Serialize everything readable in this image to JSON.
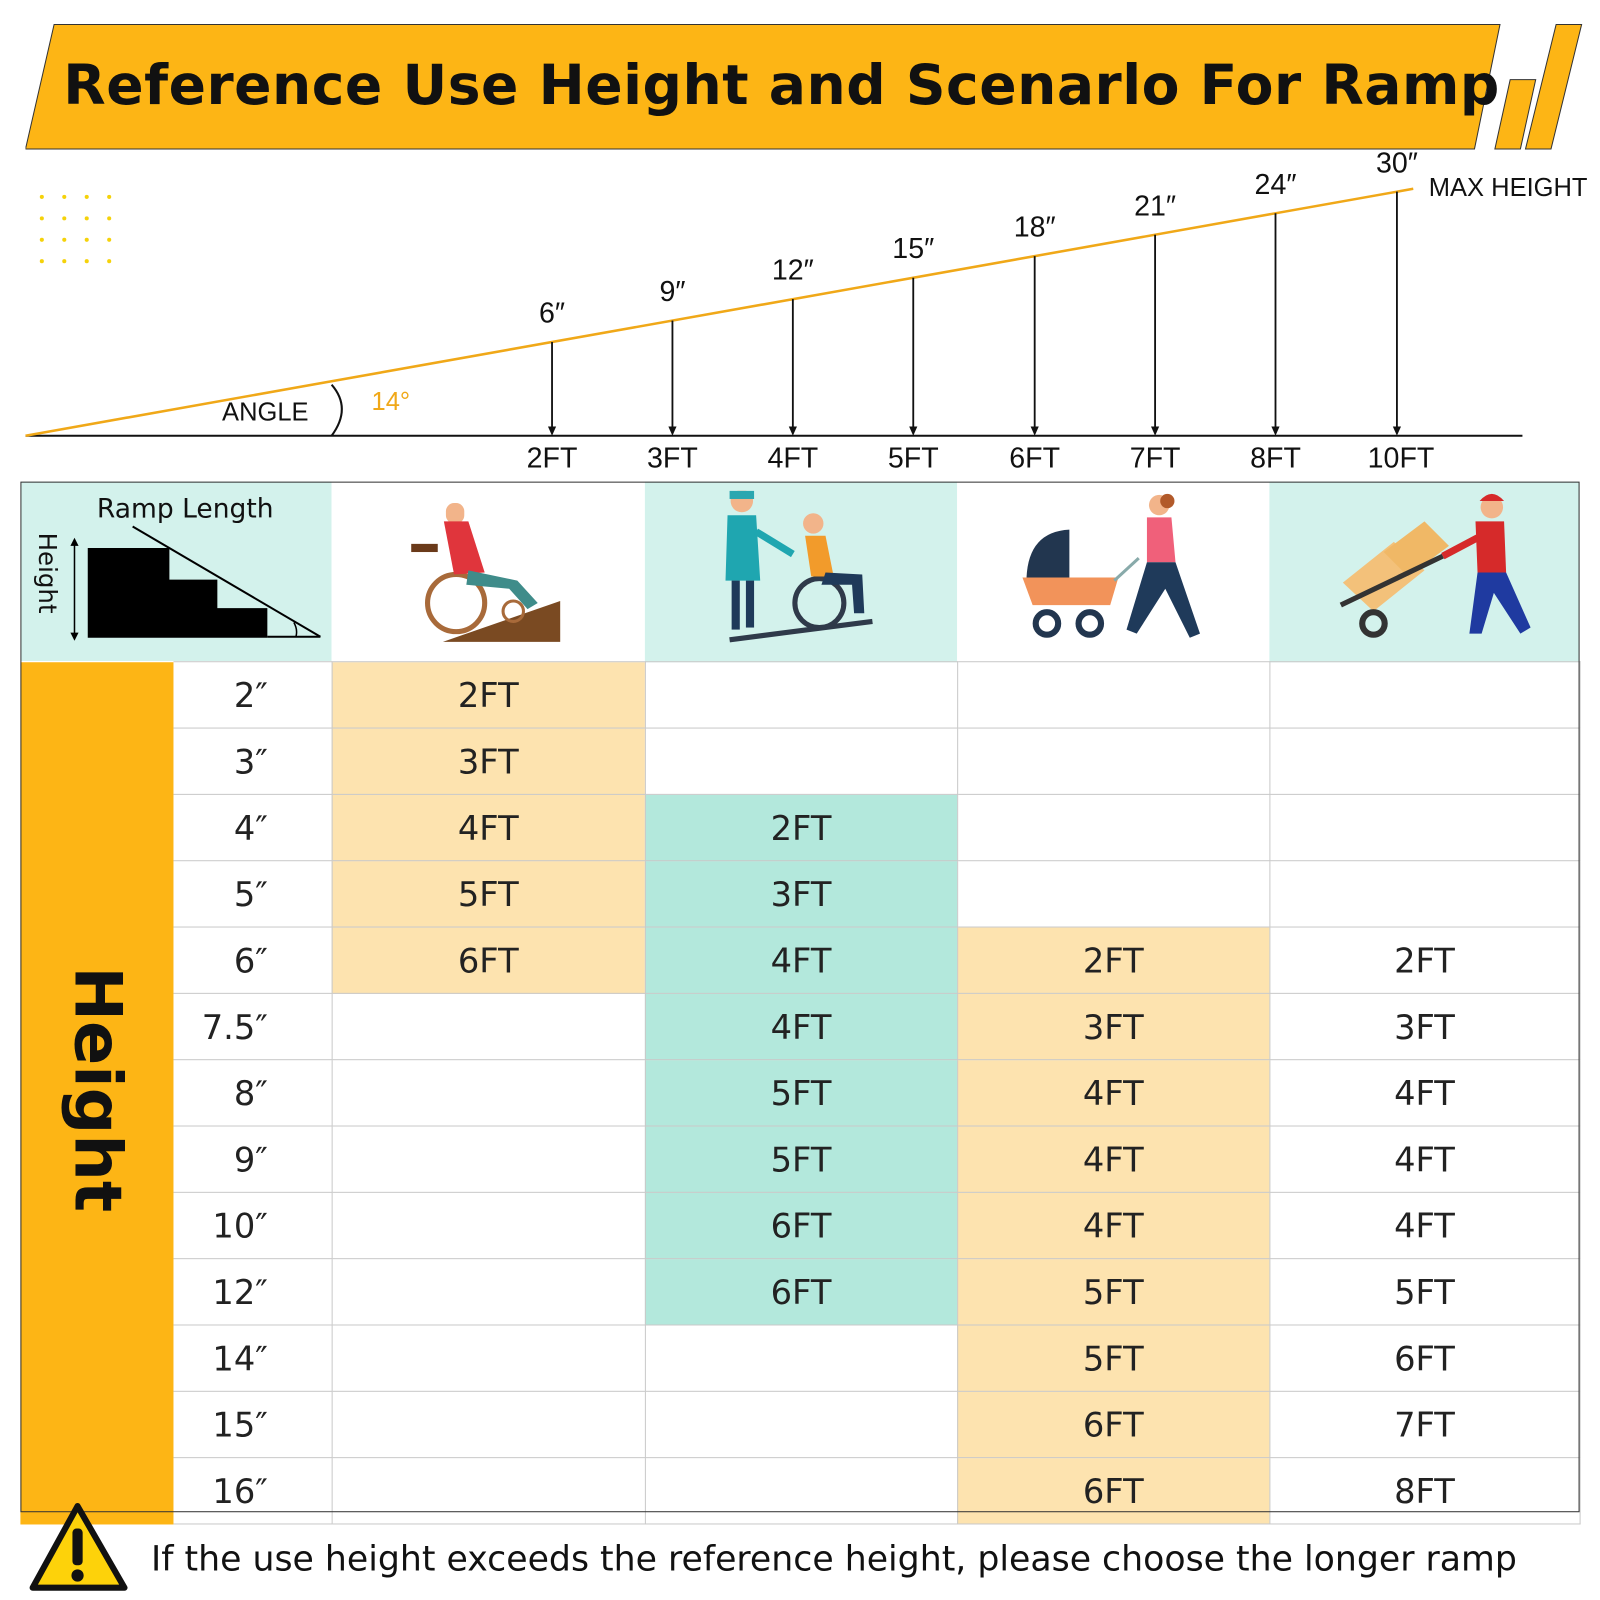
{
  "title": "Reference Use Height and Scenarlo For Ramp",
  "colors": {
    "accent": "#fdb515",
    "peach": "#fde3af",
    "mint": "#b3e8dc",
    "header_mint": "#d3f2ec",
    "slope_line": "#f0a818"
  },
  "diagram": {
    "angle_label": "ANGLE",
    "angle_value": "14°",
    "max_label": "MAX HEIGHT",
    "points": [
      {
        "length": "2FT",
        "height": "6″"
      },
      {
        "length": "3FT",
        "height": "9″"
      },
      {
        "length": "4FT",
        "height": "12″"
      },
      {
        "length": "5FT",
        "height": "15″"
      },
      {
        "length": "6FT",
        "height": "18″"
      },
      {
        "length": "7FT",
        "height": "21″"
      },
      {
        "length": "8FT",
        "height": "24″"
      },
      {
        "length": "10FT",
        "height": "30″"
      }
    ]
  },
  "table": {
    "legend": {
      "ramp_length": "Ramp Length",
      "height": "Height"
    },
    "columns": [
      {
        "icon": "wheelchair-self-icon"
      },
      {
        "icon": "assisted-wheelchair-icon"
      },
      {
        "icon": "stroller-icon"
      },
      {
        "icon": "hand-truck-icon"
      }
    ],
    "row_header": "Height",
    "rows": [
      {
        "height": "2″",
        "values": [
          "2FT",
          "",
          "",
          ""
        ]
      },
      {
        "height": "3″",
        "values": [
          "3FT",
          "",
          "",
          ""
        ]
      },
      {
        "height": "4″",
        "values": [
          "4FT",
          "2FT",
          "",
          ""
        ]
      },
      {
        "height": "5″",
        "values": [
          "5FT",
          "3FT",
          "",
          ""
        ]
      },
      {
        "height": "6″",
        "values": [
          "6FT",
          "4FT",
          "2FT",
          "2FT"
        ]
      },
      {
        "height": "7.5″",
        "values": [
          "",
          "4FT",
          "3FT",
          "3FT"
        ]
      },
      {
        "height": "8″",
        "values": [
          "",
          "5FT",
          "4FT",
          "4FT"
        ]
      },
      {
        "height": "9″",
        "values": [
          "",
          "5FT",
          "4FT",
          "4FT"
        ]
      },
      {
        "height": "10″",
        "values": [
          "",
          "6FT",
          "4FT",
          "4FT"
        ]
      },
      {
        "height": "12″",
        "values": [
          "",
          "6FT",
          "5FT",
          "5FT"
        ]
      },
      {
        "height": "14″",
        "values": [
          "",
          "",
          "5FT",
          "6FT"
        ]
      },
      {
        "height": "15″",
        "values": [
          "",
          "",
          "6FT",
          "7FT"
        ]
      },
      {
        "height": "16″",
        "values": [
          "",
          "",
          "6FT",
          "8FT"
        ]
      }
    ]
  },
  "note": {
    "icon": "warning-icon",
    "text": "If the use height exceeds the reference height, please choose the longer ramp"
  }
}
